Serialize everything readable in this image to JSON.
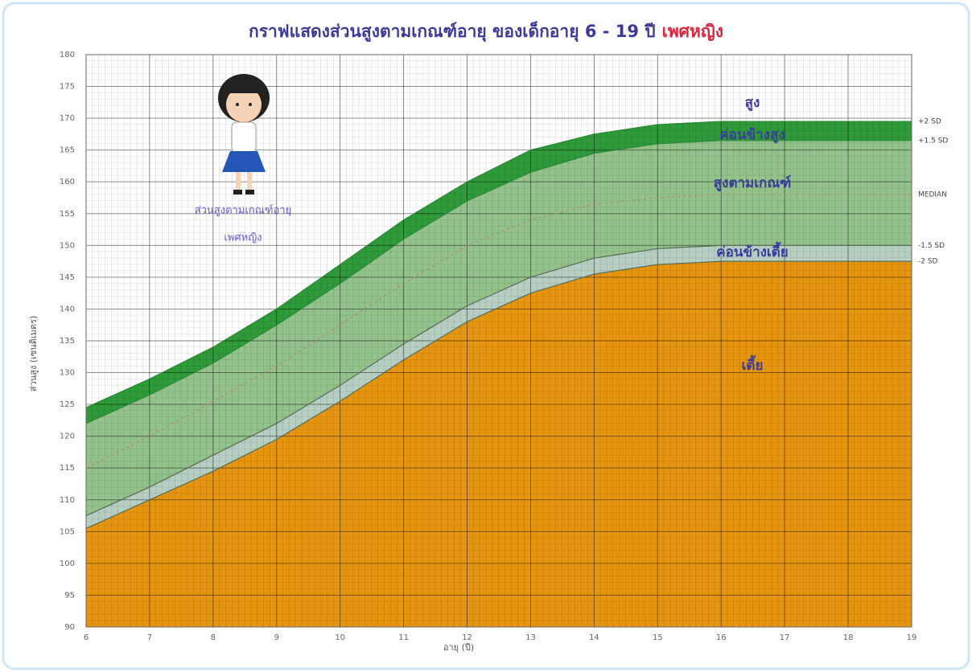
{
  "chart_data": {
    "type": "line",
    "title": "กราฟแสดงส่วนสูงตามเกณฑ์อายุ ของเด็กอายุ 6 - 19 ปี",
    "title_highlight": "เพศหญิง",
    "x_label": "อายุ (ปี)",
    "y_label": "ส่วนสูง (เซนติเมตร)",
    "caption": [
      "ส่วนสูงตามเกณฑ์อายุ",
      "เพศหญิง"
    ],
    "zone_labels": [
      "สูง",
      "ค่อนข้างสูง",
      "สูงตามเกณฑ์",
      "ค่อนข้างเตี้ย",
      "เตี้ย"
    ],
    "x": [
      6,
      7,
      8,
      9,
      10,
      11,
      12,
      13,
      14,
      15,
      16,
      17,
      18,
      19
    ],
    "series": [
      {
        "name": "+2 SD",
        "color": "#2a8a33",
        "fill": "#2e9a3a",
        "values": [
          124.5,
          129,
          134,
          140,
          147,
          154,
          160,
          165,
          167.5,
          169,
          169.5,
          169.5,
          169.5,
          169.5
        ]
      },
      {
        "name": "+1.5 SD",
        "color": "#2a8a33",
        "fill": "#93c28b",
        "values": [
          122,
          126.5,
          131.5,
          137.5,
          144,
          151,
          157,
          161.5,
          164.5,
          166,
          166.5,
          166.5,
          166.5,
          166.5
        ]
      },
      {
        "name": "MEDIAN",
        "color": "#b08a6a",
        "fill": "#93c28b",
        "values": [
          115,
          120,
          125.5,
          131,
          137.5,
          144,
          150,
          154,
          156.5,
          157.5,
          158,
          158,
          158,
          158
        ]
      },
      {
        "name": "-1.5 SD",
        "color": "#556b55",
        "fill": "#b6cfc2",
        "values": [
          107.5,
          112,
          117,
          122,
          128,
          134.5,
          140.5,
          145,
          148,
          149.5,
          150,
          150,
          150,
          150
        ]
      },
      {
        "name": "-2 SD",
        "color": "#556b55",
        "fill": "#e5950f",
        "values": [
          105.5,
          110,
          114.5,
          119.5,
          125.5,
          132,
          138,
          142.5,
          145.5,
          147,
          147.5,
          147.5,
          147.5,
          147.5
        ]
      }
    ],
    "xlim": [
      6,
      19
    ],
    "ylim": [
      90,
      180
    ],
    "xticks": [
      6,
      7,
      8,
      9,
      10,
      11,
      12,
      13,
      14,
      15,
      16,
      17,
      18,
      19
    ],
    "yticks": [
      90,
      95,
      100,
      105,
      110,
      115,
      120,
      125,
      130,
      135,
      140,
      145,
      150,
      155,
      160,
      165,
      170,
      175,
      180
    ],
    "grid": true
  }
}
